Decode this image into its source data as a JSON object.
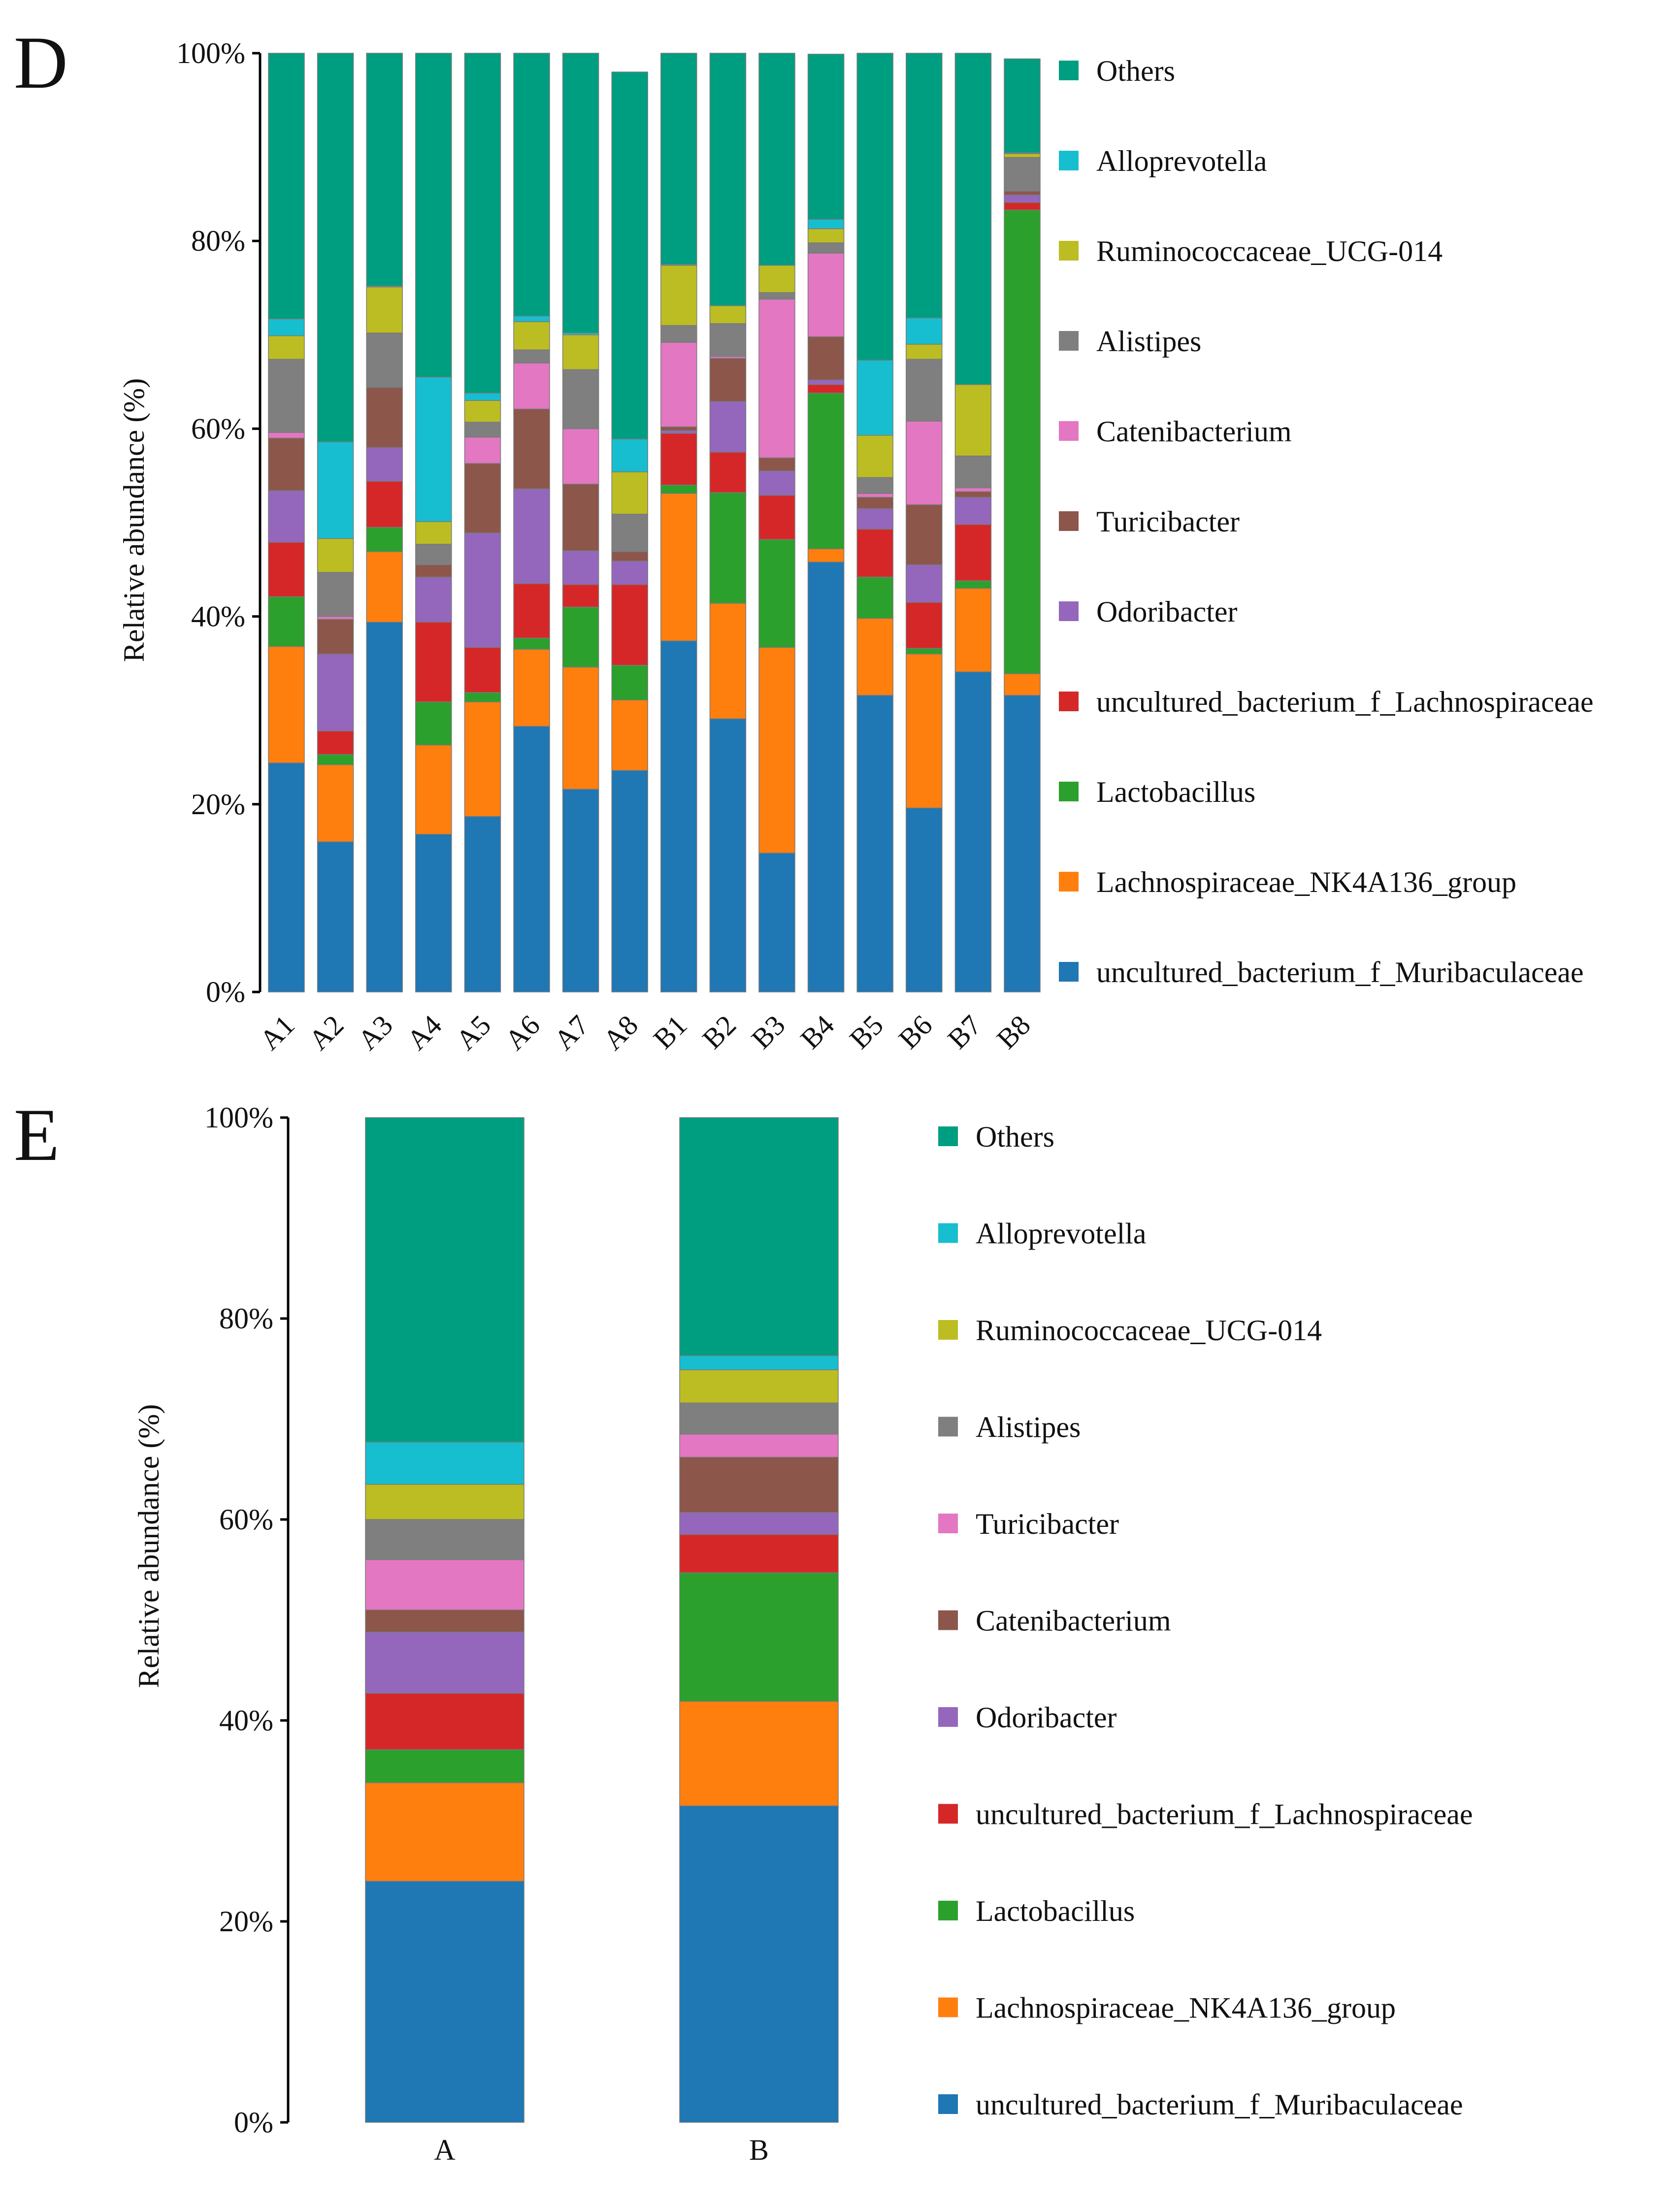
{
  "chart_data": [
    {
      "type": "bar",
      "stacked": true,
      "panel_label": "D",
      "ylabel": "Relative abundance (%)",
      "ylim": [
        0,
        100
      ],
      "yticks": [
        "0%",
        "20%",
        "40%",
        "60%",
        "80%",
        "100%"
      ],
      "categories": [
        "A1",
        "A2",
        "A3",
        "A4",
        "A5",
        "A6",
        "A7",
        "A8",
        "B1",
        "B2",
        "B3",
        "B4",
        "B5",
        "B6",
        "B7",
        "B8"
      ],
      "series": [
        {
          "name": "uncultured_bacterium_f_Muribaculaceae",
          "color": "#1f77b4",
          "values": [
            24.4,
            16.0,
            39.4,
            16.8,
            18.7,
            28.3,
            21.6,
            23.6,
            37.4,
            29.1,
            14.8,
            45.8,
            31.6,
            19.6,
            34.1,
            31.6
          ]
        },
        {
          "name": "Lachnospiraceae_NK4A136_group",
          "color": "#ff7f0e",
          "values": [
            12.4,
            8.2,
            7.5,
            9.5,
            12.2,
            8.2,
            13.0,
            7.5,
            15.7,
            12.3,
            21.9,
            1.4,
            8.2,
            16.4,
            8.9,
            2.3
          ]
        },
        {
          "name": "Lactobacillus",
          "color": "#2ca02c",
          "values": [
            5.3,
            1.1,
            2.6,
            4.6,
            1.0,
            1.2,
            6.4,
            3.7,
            0.9,
            11.8,
            11.5,
            16.6,
            4.4,
            0.6,
            0.8,
            49.4
          ]
        },
        {
          "name": "uncultured_bacterium_f_Lachnospiraceae",
          "color": "#d62728",
          "values": [
            5.8,
            2.5,
            4.9,
            8.5,
            4.8,
            5.8,
            2.4,
            8.6,
            5.5,
            4.3,
            4.7,
            0.9,
            5.1,
            4.9,
            6.0,
            0.8
          ]
        },
        {
          "name": "Odoribacter",
          "color": "#9467bd",
          "values": [
            5.5,
            8.2,
            3.6,
            4.8,
            12.2,
            10.1,
            3.6,
            2.5,
            0.3,
            5.4,
            2.6,
            0.5,
            2.2,
            4.0,
            2.9,
            0.8
          ]
        },
        {
          "name": "Turicibacter",
          "color": "#8c564b",
          "values": [
            5.6,
            3.7,
            6.4,
            1.3,
            7.4,
            8.5,
            7.1,
            1.0,
            0.4,
            4.6,
            1.4,
            4.6,
            1.2,
            6.4,
            0.6,
            0.4
          ]
        },
        {
          "name": "Catenibacterium",
          "color": "#e377c2",
          "values": [
            0.6,
            0.3,
            0.0,
            0.0,
            2.8,
            4.9,
            5.9,
            0.0,
            9.0,
            0.2,
            16.9,
            8.9,
            0.4,
            8.9,
            0.4,
            0.0
          ]
        },
        {
          "name": "Alistipes",
          "color": "#7f7f7f",
          "values": [
            7.8,
            4.7,
            5.8,
            2.2,
            1.6,
            1.4,
            6.3,
            4.0,
            1.8,
            3.5,
            0.7,
            1.1,
            1.7,
            6.6,
            3.4,
            3.6
          ]
        },
        {
          "name": "Ruminococcaceae_UCG-014",
          "color": "#bcbd22",
          "values": [
            2.5,
            3.6,
            4.9,
            2.4,
            2.3,
            3.0,
            3.7,
            4.5,
            6.4,
            1.9,
            2.9,
            1.5,
            4.5,
            1.6,
            7.6,
            0.4
          ]
        },
        {
          "name": "Alloprevotella",
          "color": "#17becf",
          "values": [
            1.8,
            10.3,
            0.1,
            15.4,
            0.8,
            0.6,
            0.2,
            3.5,
            0.1,
            0.0,
            0.0,
            1.0,
            8.0,
            2.8,
            0.0,
            0.1
          ]
        },
        {
          "name": "Others",
          "color": "#009e80",
          "values": [
            28.3,
            41.4,
            24.8,
            34.5,
            36.2,
            28.0,
            29.8,
            39.1,
            22.5,
            26.9,
            22.6,
            17.6,
            32.7,
            28.2,
            35.3,
            10.0
          ]
        }
      ]
    },
    {
      "type": "bar",
      "stacked": true,
      "panel_label": "E",
      "ylabel": "Relative abundance (%)",
      "ylim": [
        0,
        100
      ],
      "yticks": [
        "0%",
        "20%",
        "40%",
        "60%",
        "80%",
        "100%"
      ],
      "categories": [
        "A",
        "B"
      ],
      "series": [
        {
          "name": "uncultured_bacterium_f_Muribaculaceae",
          "color": "#1f77b4",
          "values": [
            24.0,
            31.5
          ]
        },
        {
          "name": "Lachnospiraceae_NK4A136_group",
          "color": "#ff7f0e",
          "values": [
            9.8,
            10.4
          ]
        },
        {
          "name": "Lactobacillus",
          "color": "#2ca02c",
          "values": [
            3.3,
            12.8
          ]
        },
        {
          "name": "uncultured_bacterium_f_Lachnospiraceae",
          "color": "#d62728",
          "values": [
            5.6,
            3.8
          ]
        },
        {
          "name": "Odoribacter",
          "color": "#9467bd",
          "values": [
            6.1,
            2.2
          ]
        },
        {
          "name": "Catenibacterium",
          "color": "#8c564b",
          "values": [
            2.2,
            5.5
          ]
        },
        {
          "name": "Turicibacter",
          "color": "#e377c2",
          "values": [
            5.0,
            2.3
          ]
        },
        {
          "name": "Alistipes",
          "color": "#7f7f7f",
          "values": [
            4.0,
            3.1
          ]
        },
        {
          "name": "Ruminococcaceae_UCG-014",
          "color": "#bcbd22",
          "values": [
            3.5,
            3.3
          ]
        },
        {
          "name": "Alloprevotella",
          "color": "#17becf",
          "values": [
            4.2,
            1.4
          ]
        },
        {
          "name": "Others",
          "color": "#009e80",
          "values": [
            32.3,
            23.7
          ]
        }
      ]
    }
  ]
}
